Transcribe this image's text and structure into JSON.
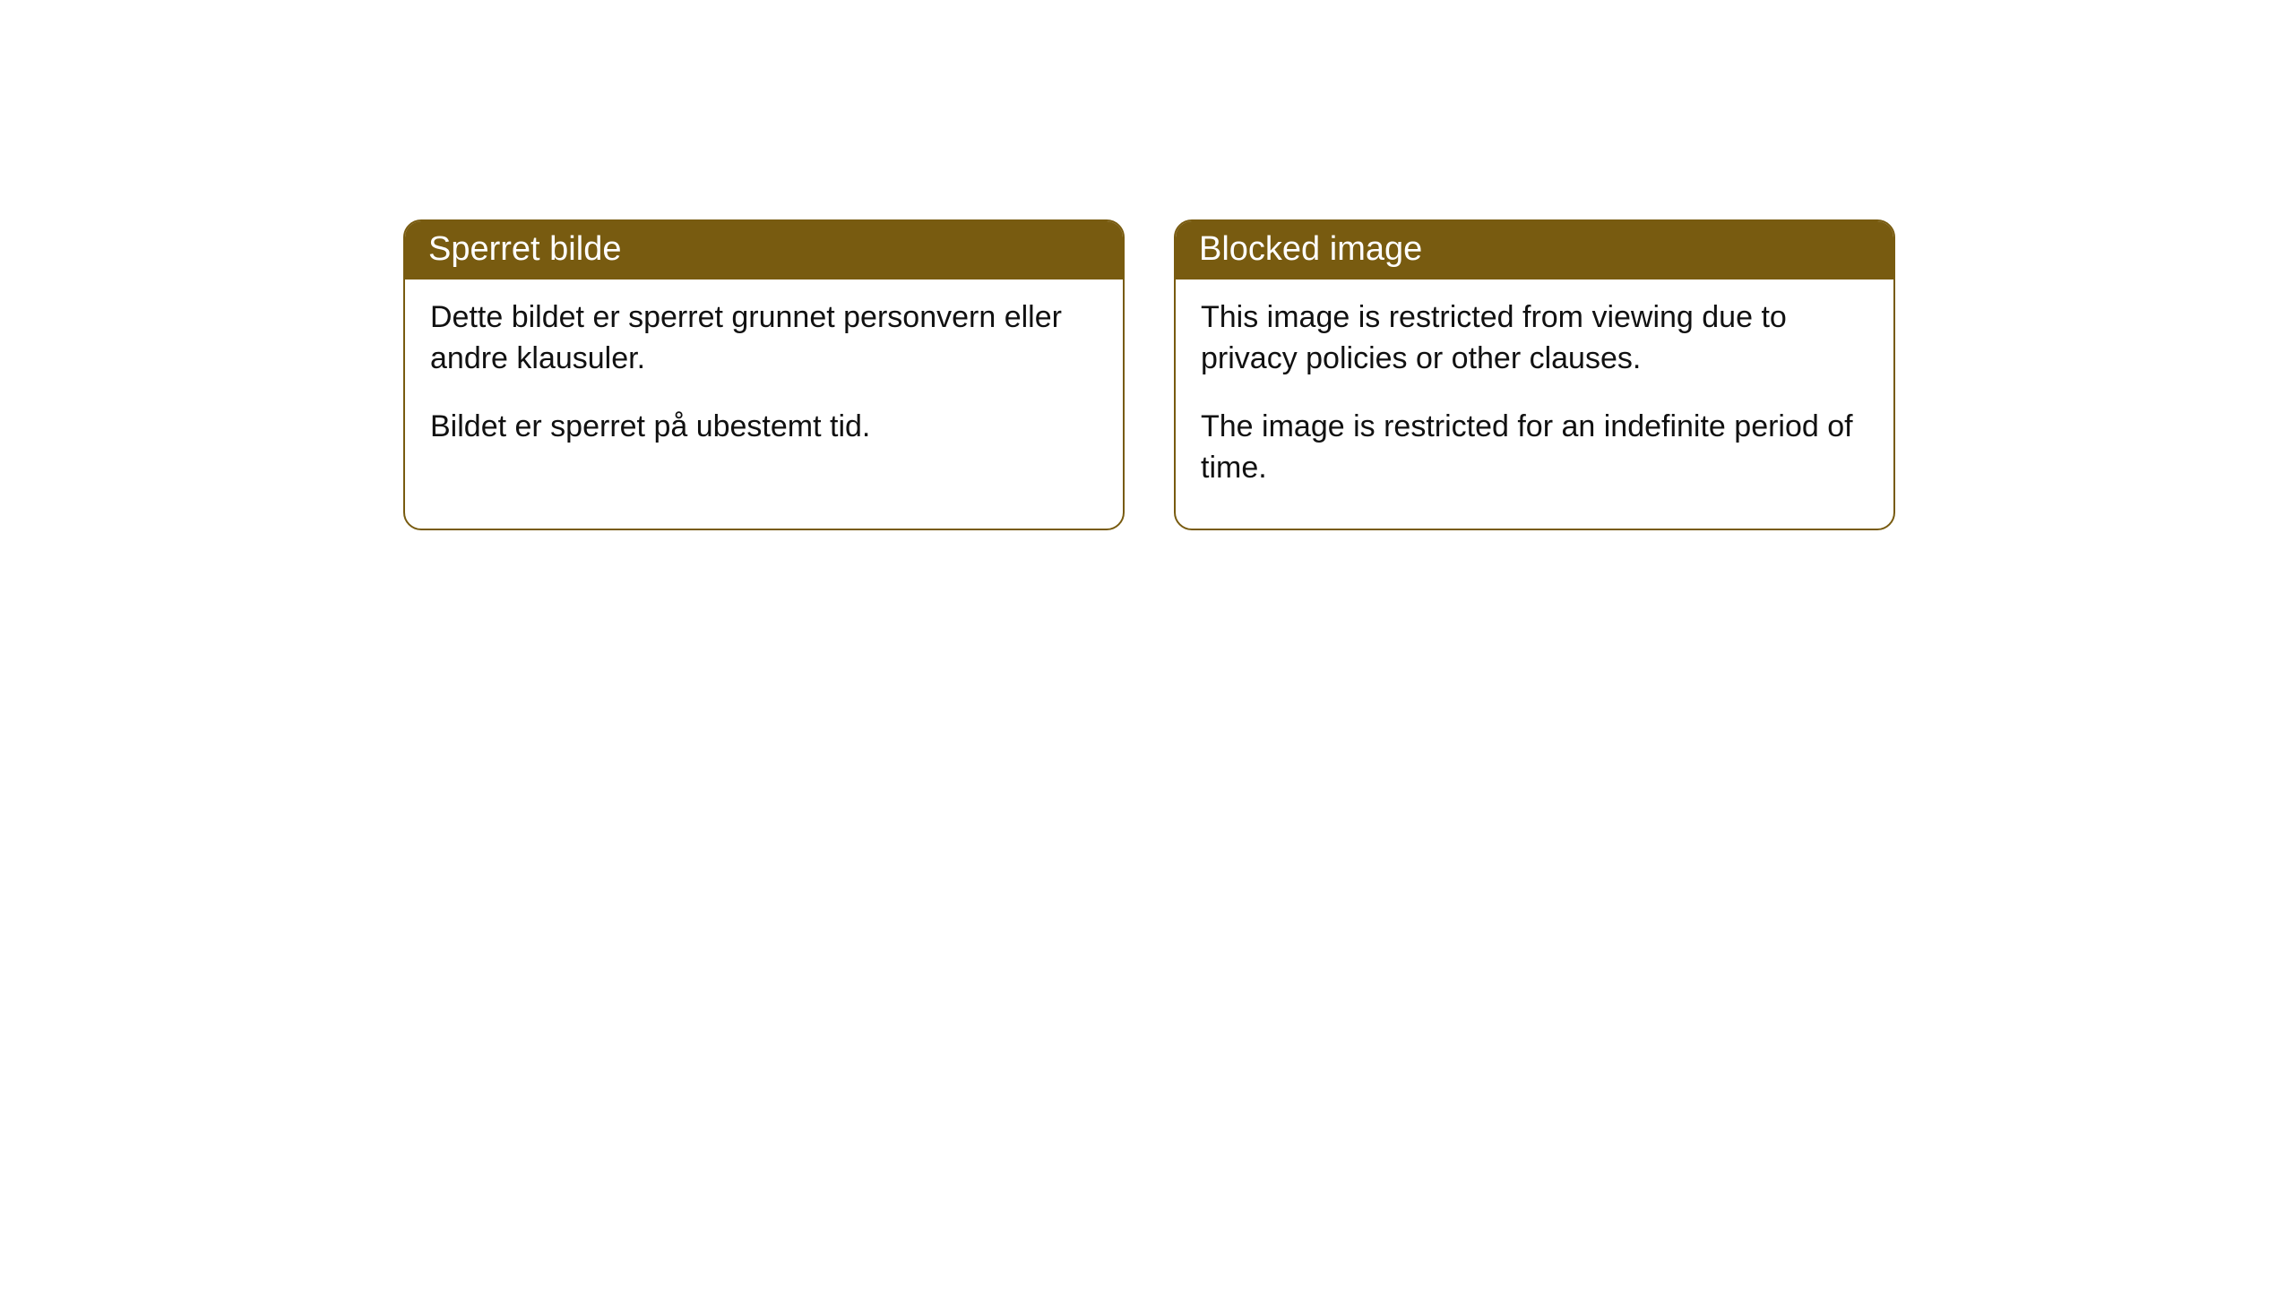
{
  "cards": [
    {
      "title": "Sperret bilde",
      "paragraph1": "Dette bildet er sperret grunnet personvern eller andre klausuler.",
      "paragraph2": "Bildet er sperret på ubestemt tid."
    },
    {
      "title": "Blocked image",
      "paragraph1": "This image is restricted from viewing due to privacy policies or other clauses.",
      "paragraph2": "The image is restricted for an indefinite period of time."
    }
  ],
  "styling": {
    "header_bg_color": "#785b10",
    "header_text_color": "#ffffff",
    "border_color": "#785b10",
    "body_bg_color": "#ffffff",
    "body_text_color": "#111111",
    "border_radius": 20,
    "header_fontsize": 38,
    "body_fontsize": 34
  }
}
